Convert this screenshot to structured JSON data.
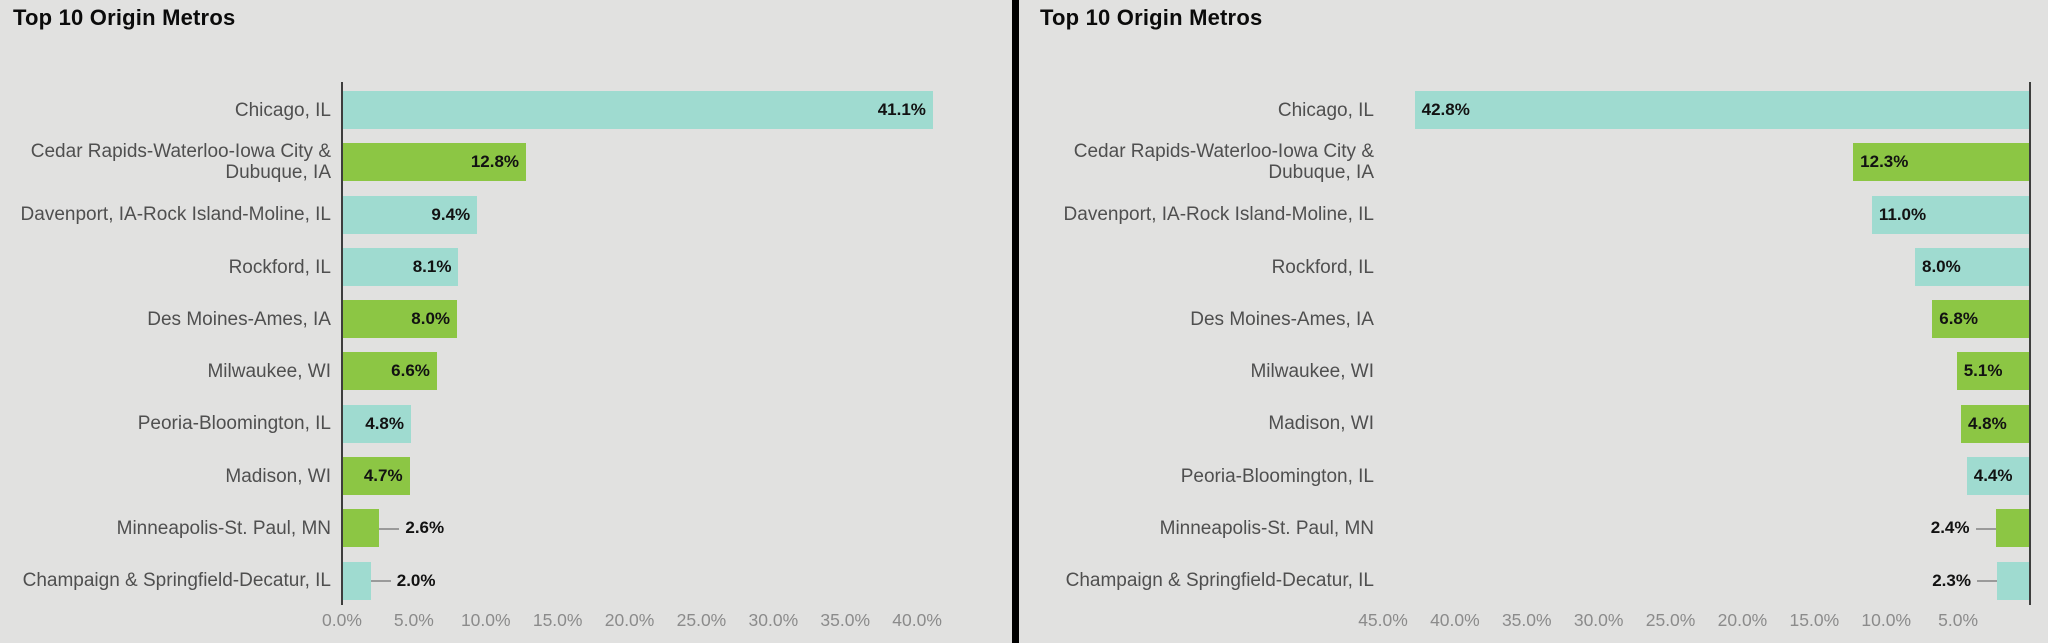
{
  "style": {
    "background": "#e1e1e0",
    "divider_color": "#000000",
    "axis_line_color": "#3d3d3d",
    "category_text_color": "#4f4f4f",
    "tick_text_color": "#8b8b8b",
    "value_text_color": "#121212",
    "leader_line_color": "#9a9a9a",
    "series_colors": {
      "teal": "#9fdbd0",
      "green": "#8cc644"
    }
  },
  "chart_data": [
    {
      "type": "bar",
      "orientation": "horizontal",
      "title": "Top 10 Origin Metros",
      "bars_anchor": "left",
      "xlim": [
        0,
        45
      ],
      "categories": [
        "Chicago, IL",
        "Cedar Rapids-Waterloo-Iowa City & Dubuque, IA",
        "Davenport, IA-Rock Island-Moline, IL",
        "Rockford, IL",
        "Des Moines-Ames, IA",
        "Milwaukee, WI",
        "Peoria-Bloomington, IL",
        "Madison, WI",
        "Minneapolis-St. Paul, MN",
        "Champaign & Springfield-Decatur, IL"
      ],
      "values": [
        41.1,
        12.8,
        9.4,
        8.1,
        8.0,
        6.6,
        4.8,
        4.7,
        2.6,
        2.0
      ],
      "value_labels": [
        "41.1%",
        "12.8%",
        "9.4%",
        "8.1%",
        "8.0%",
        "6.6%",
        "4.8%",
        "4.7%",
        "2.6%",
        "2.0%"
      ],
      "bar_colors": [
        "teal",
        "green",
        "teal",
        "teal",
        "green",
        "green",
        "teal",
        "green",
        "green",
        "teal"
      ],
      "xticks": [
        "0.0%",
        "5.0%",
        "10.0%",
        "15.0%",
        "20.0%",
        "25.0%",
        "30.0%",
        "35.0%",
        "40.0%"
      ],
      "xtick_values": [
        0,
        5,
        10,
        15,
        20,
        25,
        30,
        35,
        40
      ]
    },
    {
      "type": "bar",
      "orientation": "horizontal",
      "title": "Top 10 Origin Metros",
      "bars_anchor": "right",
      "xlim": [
        45,
        0
      ],
      "categories": [
        "Chicago, IL",
        "Cedar Rapids-Waterloo-Iowa City & Dubuque, IA",
        "Davenport, IA-Rock Island-Moline, IL",
        "Rockford, IL",
        "Des Moines-Ames, IA",
        "Milwaukee, WI",
        "Madison, WI",
        "Peoria-Bloomington, IL",
        "Minneapolis-St. Paul, MN",
        "Champaign & Springfield-Decatur, IL"
      ],
      "values": [
        42.8,
        12.3,
        11.0,
        8.0,
        6.8,
        5.1,
        4.8,
        4.4,
        2.4,
        2.3
      ],
      "value_labels": [
        "42.8%",
        "12.3%",
        "11.0%",
        "8.0%",
        "6.8%",
        "5.1%",
        "4.8%",
        "4.4%",
        "2.4%",
        "2.3%"
      ],
      "bar_colors": [
        "teal",
        "green",
        "teal",
        "teal",
        "green",
        "green",
        "green",
        "teal",
        "green",
        "teal"
      ],
      "xticks": [
        "45.0%",
        "40.0%",
        "35.0%",
        "30.0%",
        "25.0%",
        "20.0%",
        "15.0%",
        "10.0%",
        "5.0%"
      ],
      "xtick_values": [
        45,
        40,
        35,
        30,
        25,
        20,
        15,
        10,
        5
      ]
    }
  ]
}
